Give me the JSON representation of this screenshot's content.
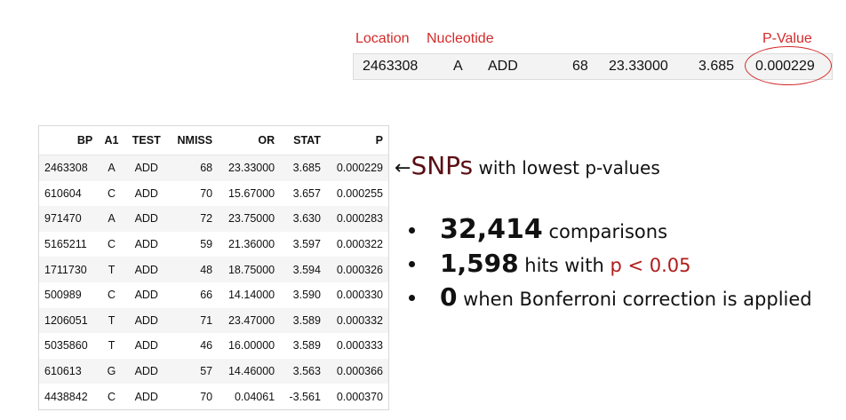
{
  "annotation": {
    "labels": {
      "location": "Location",
      "nucleotide": "Nucleotide",
      "pvalue": "P-Value"
    },
    "row": {
      "bp": "2463308",
      "a1": "A",
      "test": "ADD",
      "nmiss": "68",
      "or": "23.33000",
      "stat": "3.685",
      "p": "0.000229"
    },
    "label_color": "#d42a2a"
  },
  "table": {
    "headers": [
      "BP",
      "A1",
      "TEST",
      "NMISS",
      "OR",
      "STAT",
      "P"
    ],
    "rows": [
      [
        "2463308",
        "A",
        "ADD",
        "68",
        "23.33000",
        "3.685",
        "0.000229"
      ],
      [
        "610604",
        "C",
        "ADD",
        "70",
        "15.67000",
        "3.657",
        "0.000255"
      ],
      [
        "971470",
        "A",
        "ADD",
        "72",
        "23.75000",
        "3.630",
        "0.000283"
      ],
      [
        "5165211",
        "C",
        "ADD",
        "59",
        "21.36000",
        "3.597",
        "0.000322"
      ],
      [
        "1711730",
        "T",
        "ADD",
        "48",
        "18.75000",
        "3.594",
        "0.000326"
      ],
      [
        "500989",
        "C",
        "ADD",
        "66",
        "14.14000",
        "3.590",
        "0.000330"
      ],
      [
        "1206051",
        "T",
        "ADD",
        "71",
        "23.47000",
        "3.589",
        "0.000332"
      ],
      [
        "5035860",
        "T",
        "ADD",
        "46",
        "16.00000",
        "3.589",
        "0.000333"
      ],
      [
        "610613",
        "G",
        "ADD",
        "57",
        "14.46000",
        "3.563",
        "0.000366"
      ],
      [
        "4438842",
        "C",
        "ADD",
        "70",
        "0.04061",
        "-3.561",
        "0.000370"
      ]
    ]
  },
  "callout": {
    "arrow": "←",
    "snps": "SNPs",
    "rest": " with lowest p-values"
  },
  "stats": {
    "comparisons_value": "32,414",
    "comparisons_text": " comparisons",
    "hits_value": "1,598",
    "hits_text": " hits with ",
    "hits_threshold": "p < 0.05",
    "bonf_value": "0",
    "bonf_text": " when Bonferroni correction is applied"
  }
}
